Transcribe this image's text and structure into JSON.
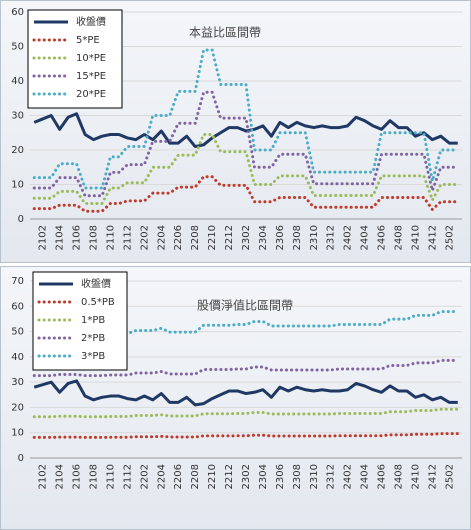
{
  "chart_data": [
    {
      "type": "line",
      "title": "本益比區間帶",
      "categories": [
        null,
        "2102",
        null,
        "2104",
        null,
        "2106",
        null,
        "2108",
        null,
        "2110",
        null,
        "2112",
        null,
        "2202",
        null,
        "2204",
        null,
        "2206",
        null,
        "2208",
        null,
        "2210",
        null,
        "2212",
        null,
        "2302",
        null,
        "2304",
        null,
        "2306",
        null,
        "2308",
        null,
        "2310",
        null,
        "2312",
        null,
        "2402",
        null,
        "2404",
        null,
        "2406",
        null,
        "2408",
        null,
        "2410",
        null,
        "2412",
        null,
        "2502",
        null
      ],
      "ylim": [
        0,
        60
      ],
      "yticks": [
        0,
        10,
        20,
        30,
        40,
        50,
        60
      ],
      "grid": true,
      "legend": "top-left",
      "series": [
        {
          "name": "收盤價",
          "color": "#1f3864",
          "values": [
            28,
            29,
            30,
            26,
            29.5,
            30.5,
            24.5,
            23,
            24,
            24.5,
            24.5,
            23.5,
            23,
            24.5,
            23,
            25.5,
            22,
            22,
            24,
            21,
            21.5,
            23.5,
            25,
            26.5,
            26.5,
            25.5,
            26,
            27,
            24,
            28,
            26.5,
            28,
            27,
            26.5,
            27,
            26.5,
            26.5,
            27,
            29.5,
            28.5,
            27,
            26,
            28.5,
            26.5,
            26.5,
            24,
            25,
            23,
            24,
            22,
            22
          ]
        },
        {
          "name": "5*PE",
          "color": "#c0392b",
          "values": [
            3,
            3,
            3,
            4,
            4,
            4,
            2.25,
            2.25,
            2.25,
            4.5,
            4.5,
            5.25,
            5.25,
            5.25,
            7.5,
            7.5,
            7.5,
            9.25,
            9.25,
            9.25,
            12.25,
            12.25,
            9.75,
            9.75,
            9.75,
            9.75,
            5,
            5,
            5,
            6.25,
            6.25,
            6.25,
            6.25,
            3.4,
            3.4,
            3.4,
            3.4,
            3.4,
            3.4,
            3.4,
            3.4,
            6.25,
            6.25,
            6.25,
            6.25,
            6.25,
            6.25,
            2.75,
            5,
            5,
            5
          ]
        },
        {
          "name": "10*PE",
          "color": "#9bbb59",
          "values": [
            6,
            6,
            6,
            8,
            8,
            8,
            4.5,
            4.5,
            4.5,
            9,
            9,
            10.5,
            10.5,
            10.5,
            15,
            15,
            15,
            18.5,
            18.5,
            18.5,
            24.5,
            24.5,
            19.5,
            19.5,
            19.5,
            19.5,
            10,
            10,
            10,
            12.5,
            12.5,
            12.5,
            12.5,
            6.8,
            6.8,
            6.8,
            6.8,
            6.8,
            6.8,
            6.8,
            6.8,
            12.5,
            12.5,
            12.5,
            12.5,
            12.5,
            12.5,
            5.5,
            10,
            10,
            10
          ]
        },
        {
          "name": "15*PE",
          "color": "#8064a2",
          "values": [
            9,
            9,
            9,
            12,
            12,
            12,
            6.75,
            6.75,
            6.75,
            13.5,
            13.5,
            15.75,
            15.75,
            15.75,
            22.5,
            22.5,
            22.5,
            27.75,
            27.75,
            27.75,
            36.75,
            36.75,
            29.25,
            29.25,
            29.25,
            29.25,
            15,
            15,
            15,
            18.75,
            18.75,
            18.75,
            18.75,
            10.2,
            10.2,
            10.2,
            10.2,
            10.2,
            10.2,
            10.2,
            10.2,
            18.75,
            18.75,
            18.75,
            18.75,
            18.75,
            18.75,
            8.25,
            15,
            15,
            15
          ]
        },
        {
          "name": "20*PE",
          "color": "#4bacc6",
          "values": [
            12,
            12,
            12,
            16,
            16,
            16,
            9,
            9,
            9,
            18,
            18,
            21,
            21,
            21,
            30,
            30,
            30,
            37,
            37,
            37,
            49,
            49,
            39,
            39,
            39,
            39,
            20,
            20,
            20,
            25,
            25,
            25,
            25,
            13.6,
            13.6,
            13.6,
            13.6,
            13.6,
            13.6,
            13.6,
            13.6,
            25,
            25,
            25,
            25,
            25,
            25,
            11,
            20,
            20,
            20
          ]
        }
      ]
    },
    {
      "type": "line",
      "title": "股價淨值比區間帶",
      "categories": [
        null,
        "2102",
        null,
        "2104",
        null,
        "2106",
        null,
        "2108",
        null,
        "2110",
        null,
        "2112",
        null,
        "2202",
        null,
        "2204",
        null,
        "2206",
        null,
        "2208",
        null,
        "2210",
        null,
        "2212",
        null,
        "2302",
        null,
        "2304",
        null,
        "2306",
        null,
        "2308",
        null,
        "2310",
        null,
        "2312",
        null,
        "2402",
        null,
        "2404",
        null,
        "2406",
        null,
        "2408",
        null,
        "2410",
        null,
        "2412",
        null,
        "2502",
        null
      ],
      "ylim": [
        0,
        70
      ],
      "yticks": [
        0,
        10,
        20,
        30,
        40,
        50,
        60,
        70
      ],
      "grid": true,
      "legend": "top-left",
      "series": [
        {
          "name": "收盤價",
          "color": "#1f3864",
          "values": [
            28,
            29,
            30,
            26,
            29.5,
            30.5,
            24.5,
            23,
            24,
            24.5,
            24.5,
            23.5,
            23,
            24.5,
            23,
            25.5,
            22,
            22,
            24,
            21,
            21.5,
            23.5,
            25,
            26.5,
            26.5,
            25.5,
            26,
            27,
            24,
            28,
            26.5,
            28,
            27,
            26.5,
            27,
            26.5,
            26.5,
            27,
            29.5,
            28.5,
            27,
            26,
            28.5,
            26.5,
            26.5,
            24,
            25,
            23,
            24,
            22,
            22
          ]
        },
        {
          "name": "0.5*PB",
          "color": "#c0392b",
          "values": [
            8.15,
            8.15,
            8.15,
            8.25,
            8.25,
            8.25,
            8.15,
            8.15,
            8.15,
            8.2,
            8.2,
            8.2,
            8.4,
            8.4,
            8.4,
            8.55,
            8.3,
            8.3,
            8.3,
            8.3,
            8.75,
            8.75,
            8.75,
            8.75,
            8.8,
            8.8,
            9,
            9,
            8.7,
            8.7,
            8.7,
            8.7,
            8.7,
            8.7,
            8.7,
            8.7,
            8.8,
            8.8,
            8.8,
            8.8,
            8.8,
            8.8,
            9.15,
            9.15,
            9.15,
            9.4,
            9.4,
            9.4,
            9.65,
            9.65,
            9.65
          ]
        },
        {
          "name": "1*PB",
          "color": "#9bbb59",
          "values": [
            16.3,
            16.3,
            16.3,
            16.5,
            16.5,
            16.5,
            16.3,
            16.3,
            16.3,
            16.4,
            16.4,
            16.4,
            16.8,
            16.8,
            16.8,
            17.1,
            16.6,
            16.6,
            16.6,
            16.6,
            17.5,
            17.5,
            17.5,
            17.5,
            17.6,
            17.6,
            18,
            18,
            17.4,
            17.4,
            17.4,
            17.4,
            17.4,
            17.4,
            17.4,
            17.4,
            17.6,
            17.6,
            17.6,
            17.6,
            17.6,
            17.6,
            18.3,
            18.3,
            18.3,
            18.8,
            18.8,
            18.8,
            19.3,
            19.3,
            19.3
          ]
        },
        {
          "name": "2*PB",
          "color": "#8064a2",
          "values": [
            32.6,
            32.6,
            32.6,
            33,
            33,
            33,
            32.6,
            32.6,
            32.6,
            32.8,
            32.8,
            32.8,
            33.6,
            33.6,
            33.6,
            34.2,
            33.2,
            33.2,
            33.2,
            33.2,
            35,
            35,
            35,
            35,
            35.2,
            35.2,
            36,
            36,
            34.8,
            34.8,
            34.8,
            34.8,
            34.8,
            34.8,
            34.8,
            34.8,
            35.2,
            35.2,
            35.2,
            35.2,
            35.2,
            35.2,
            36.6,
            36.6,
            36.6,
            37.6,
            37.6,
            37.6,
            38.6,
            38.6,
            38.6
          ]
        },
        {
          "name": "3*PB",
          "color": "#4bacc6",
          "values": [
            48.9,
            48.9,
            48.9,
            49.5,
            49.5,
            49.5,
            48.9,
            48.9,
            48.9,
            49.2,
            49.2,
            49.2,
            50.4,
            50.4,
            50.4,
            51.3,
            49.8,
            49.8,
            49.8,
            49.8,
            52.5,
            52.5,
            52.5,
            52.5,
            52.8,
            52.8,
            54,
            54,
            52.2,
            52.2,
            52.2,
            52.2,
            52.2,
            52.2,
            52.2,
            52.2,
            52.8,
            52.8,
            52.8,
            52.8,
            52.8,
            52.8,
            54.9,
            54.9,
            54.9,
            56.4,
            56.4,
            56.4,
            57.9,
            57.9,
            57.9
          ]
        }
      ]
    }
  ]
}
